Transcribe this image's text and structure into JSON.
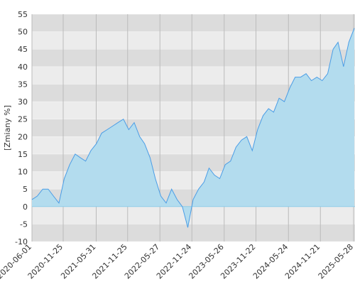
{
  "chart_data": {
    "type": "area",
    "ylabel": "[Zmiany %]",
    "x": [
      "2020-06-01",
      "2020-07-01",
      "2020-08-01",
      "2020-09-01",
      "2020-10-01",
      "2020-11-01",
      "2020-12-01",
      "2021-01-01",
      "2021-02-01",
      "2021-03-01",
      "2021-04-01",
      "2021-05-01",
      "2021-06-01",
      "2021-07-01",
      "2021-08-01",
      "2021-09-01",
      "2021-10-01",
      "2021-11-01",
      "2021-12-01",
      "2022-01-01",
      "2022-02-01",
      "2022-03-01",
      "2022-04-01",
      "2022-05-01",
      "2022-06-01",
      "2022-07-01",
      "2022-08-01",
      "2022-09-01",
      "2022-10-01",
      "2022-11-01",
      "2022-12-01",
      "2023-01-01",
      "2023-02-01",
      "2023-03-01",
      "2023-04-01",
      "2023-05-01",
      "2023-06-01",
      "2023-07-01",
      "2023-08-01",
      "2023-09-01",
      "2023-10-01",
      "2023-11-01",
      "2023-12-01",
      "2024-01-01",
      "2024-02-01",
      "2024-03-01",
      "2024-04-01",
      "2024-05-01",
      "2024-06-01",
      "2024-07-01",
      "2024-08-01",
      "2024-09-01",
      "2024-10-01",
      "2024-11-01",
      "2024-12-01",
      "2025-01-01",
      "2025-02-01",
      "2025-03-01",
      "2025-04-01",
      "2025-05-01",
      "2025-06-01"
    ],
    "values": [
      2,
      3,
      5,
      5,
      3,
      1,
      8,
      12,
      15,
      14,
      13,
      16,
      18,
      21,
      22,
      23,
      24,
      25,
      22,
      24,
      20,
      18,
      14,
      8,
      3,
      1,
      5,
      2,
      0,
      -6,
      2,
      5,
      7,
      11,
      9,
      8,
      12,
      13,
      17,
      19,
      20,
      16,
      22,
      26,
      28,
      27,
      31,
      30,
      34,
      37,
      37,
      38,
      36,
      37,
      36,
      38,
      45,
      47,
      40,
      47,
      51
    ],
    "color": "#4a9de6",
    "fill_color": "#b3dcee",
    "zero_line_color": "#8fcbe8",
    "band_colors": [
      "#dcdcdc",
      "#ececec"
    ],
    "xlim": [
      "2020-06-01",
      "2025-06-05"
    ],
    "xticks": [
      "2020-06-01",
      "2020-11-25",
      "2021-05-31",
      "2021-11-25",
      "2022-05-27",
      "2022-11-24",
      "2023-05-26",
      "2023-11-22",
      "2024-05-24",
      "2024-11-21",
      "2025-05-28"
    ],
    "ylim": [
      -10,
      55
    ],
    "yticks": [
      -10,
      -5,
      0,
      5,
      10,
      15,
      20,
      25,
      30,
      35,
      40,
      45,
      50,
      55
    ],
    "grid": true
  }
}
